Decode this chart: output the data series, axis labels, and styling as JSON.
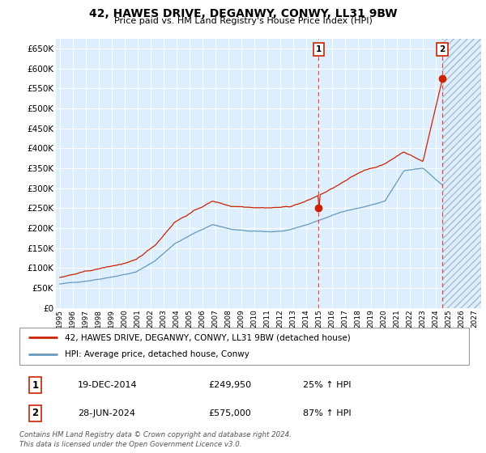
{
  "title": "42, HAWES DRIVE, DEGANWY, CONWY, LL31 9BW",
  "subtitle": "Price paid vs. HM Land Registry's House Price Index (HPI)",
  "ylim": [
    0,
    675000
  ],
  "yticks": [
    0,
    50000,
    100000,
    150000,
    200000,
    250000,
    300000,
    350000,
    400000,
    450000,
    500000,
    550000,
    600000,
    650000
  ],
  "xlim_start": 1994.7,
  "xlim_end": 2027.5,
  "xtick_years": [
    1995,
    1996,
    1997,
    1998,
    1999,
    2000,
    2001,
    2002,
    2003,
    2004,
    2005,
    2006,
    2007,
    2008,
    2009,
    2010,
    2011,
    2012,
    2013,
    2014,
    2015,
    2016,
    2017,
    2018,
    2019,
    2020,
    2021,
    2022,
    2023,
    2024,
    2025,
    2026,
    2027
  ],
  "plot_bg_color": "#ddeeff",
  "grid_color": "#ffffff",
  "red_line_color": "#cc2200",
  "blue_line_color": "#6699bb",
  "marker1_year": 2014.97,
  "marker1_price": 249950,
  "marker2_year": 2024.49,
  "marker2_price": 575000,
  "hatch_start": 2024.49,
  "legend_line1": "42, HAWES DRIVE, DEGANWY, CONWY, LL31 9BW (detached house)",
  "legend_line2": "HPI: Average price, detached house, Conwy",
  "table_row1_num": "1",
  "table_row1_date": "19-DEC-2014",
  "table_row1_price": "£249,950",
  "table_row1_hpi": "25% ↑ HPI",
  "table_row2_num": "2",
  "table_row2_date": "28-JUN-2024",
  "table_row2_price": "£575,000",
  "table_row2_hpi": "87% ↑ HPI",
  "footer": "Contains HM Land Registry data © Crown copyright and database right 2024.\nThis data is licensed under the Open Government Licence v3.0."
}
